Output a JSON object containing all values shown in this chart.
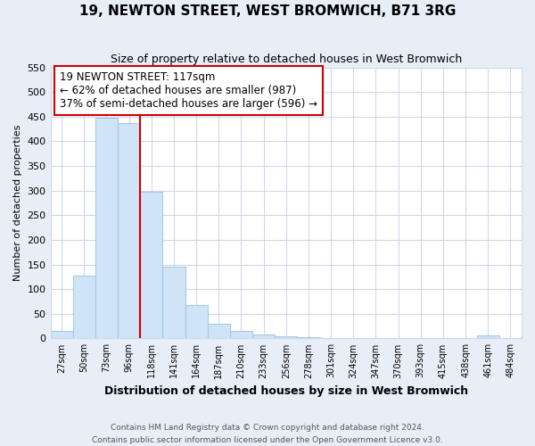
{
  "title": "19, NEWTON STREET, WEST BROMWICH, B71 3RG",
  "subtitle": "Size of property relative to detached houses in West Bromwich",
  "xlabel": "Distribution of detached houses by size in West Bromwich",
  "ylabel": "Number of detached properties",
  "bin_labels": [
    "27sqm",
    "50sqm",
    "73sqm",
    "96sqm",
    "118sqm",
    "141sqm",
    "164sqm",
    "187sqm",
    "210sqm",
    "233sqm",
    "256sqm",
    "278sqm",
    "301sqm",
    "324sqm",
    "347sqm",
    "370sqm",
    "393sqm",
    "415sqm",
    "438sqm",
    "461sqm",
    "484sqm"
  ],
  "bar_heights": [
    15,
    128,
    448,
    437,
    298,
    145,
    68,
    29,
    16,
    8,
    5,
    2,
    1,
    0,
    1,
    0,
    0,
    0,
    0,
    6,
    0
  ],
  "bar_color": "#d0e4f7",
  "bar_edge_color": "#a8c8e8",
  "vline_x_index": 3,
  "vline_color": "#cc0000",
  "annotation_text": "19 NEWTON STREET: 117sqm\n← 62% of detached houses are smaller (987)\n37% of semi-detached houses are larger (596) →",
  "annotation_box_facecolor": "white",
  "annotation_box_edgecolor": "#cc0000",
  "ylim": [
    0,
    550
  ],
  "yticks": [
    0,
    50,
    100,
    150,
    200,
    250,
    300,
    350,
    400,
    450,
    500,
    550
  ],
  "footer_line1": "Contains HM Land Registry data © Crown copyright and database right 2024.",
  "footer_line2": "Contains public sector information licensed under the Open Government Licence v3.0.",
  "fig_facecolor": "#e8eef8",
  "axes_facecolor": "#ffffff",
  "grid_color": "#d0d8e8"
}
